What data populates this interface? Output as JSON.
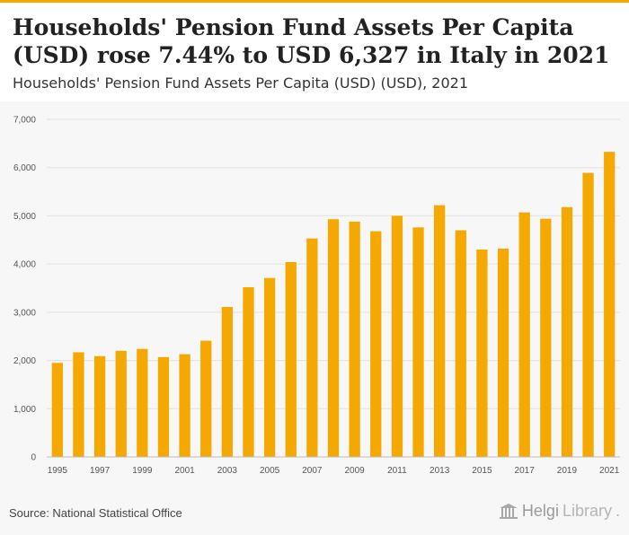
{
  "header": {
    "title": "Households' Pension Fund Assets Per Capita (USD) rose 7.44% to USD 6,327 in Italy in 2021",
    "subtitle": "Households' Pension Fund Assets Per Capita (USD) (USD), 2021"
  },
  "footer": {
    "source": "Source: National Statistical Office",
    "brand_name_1": "Helgi",
    "brand_name_2": "Library",
    "brand_suffix": "."
  },
  "colors": {
    "bar": "#f5a800",
    "grid": "#e2e2e2",
    "background": "#f7f7f7"
  },
  "chart_data": {
    "type": "bar",
    "title": "Households' Pension Fund Assets Per Capita (USD) (USD), 2021",
    "xlabel": "",
    "ylabel": "",
    "ylim": [
      0,
      7000
    ],
    "yticks": [
      0,
      1000,
      2000,
      3000,
      4000,
      5000,
      6000,
      7000
    ],
    "ytick_labels": [
      "0",
      "1,000",
      "2,000",
      "3,000",
      "4,000",
      "5,000",
      "6,000",
      "7,000"
    ],
    "categories": [
      "1995",
      "1996",
      "1997",
      "1998",
      "1999",
      "2000",
      "2001",
      "2002",
      "2003",
      "2004",
      "2005",
      "2006",
      "2007",
      "2008",
      "2009",
      "2010",
      "2011",
      "2012",
      "2013",
      "2014",
      "2015",
      "2016",
      "2017",
      "2018",
      "2019",
      "2020",
      "2021"
    ],
    "xtick_labels": [
      "1995",
      "1997",
      "1999",
      "2001",
      "2003",
      "2005",
      "2007",
      "2009",
      "2011",
      "2013",
      "2015",
      "2017",
      "2019",
      "2021"
    ],
    "values": [
      1950,
      2170,
      2090,
      2200,
      2240,
      2070,
      2130,
      2410,
      3110,
      3520,
      3710,
      4040,
      4530,
      4930,
      4880,
      4680,
      5000,
      4760,
      5220,
      4700,
      4300,
      4320,
      5070,
      4940,
      5180,
      5890,
      6327
    ],
    "grid": true,
    "legend": "none"
  }
}
